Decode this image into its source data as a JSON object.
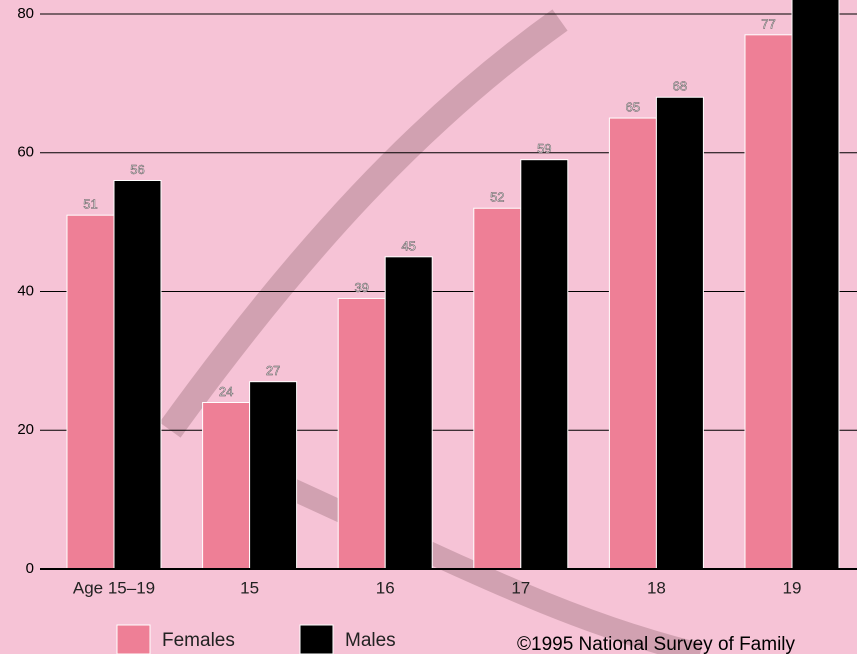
{
  "chart_data": {
    "type": "bar",
    "categories": [
      "Age 15–19",
      "15",
      "16",
      "17",
      "18",
      "19"
    ],
    "series": [
      {
        "name": "Females",
        "color": "#ee7f96",
        "values": [
          51,
          24,
          39,
          52,
          65,
          77
        ]
      },
      {
        "name": "Males",
        "color": "#000000",
        "values": [
          56,
          27,
          45,
          59,
          68,
          85
        ]
      }
    ],
    "ylim": [
      0,
      80
    ],
    "yticks": [
      0,
      20,
      40,
      60,
      80
    ],
    "grid": true,
    "source": "©1995 National Survey of Family"
  }
}
